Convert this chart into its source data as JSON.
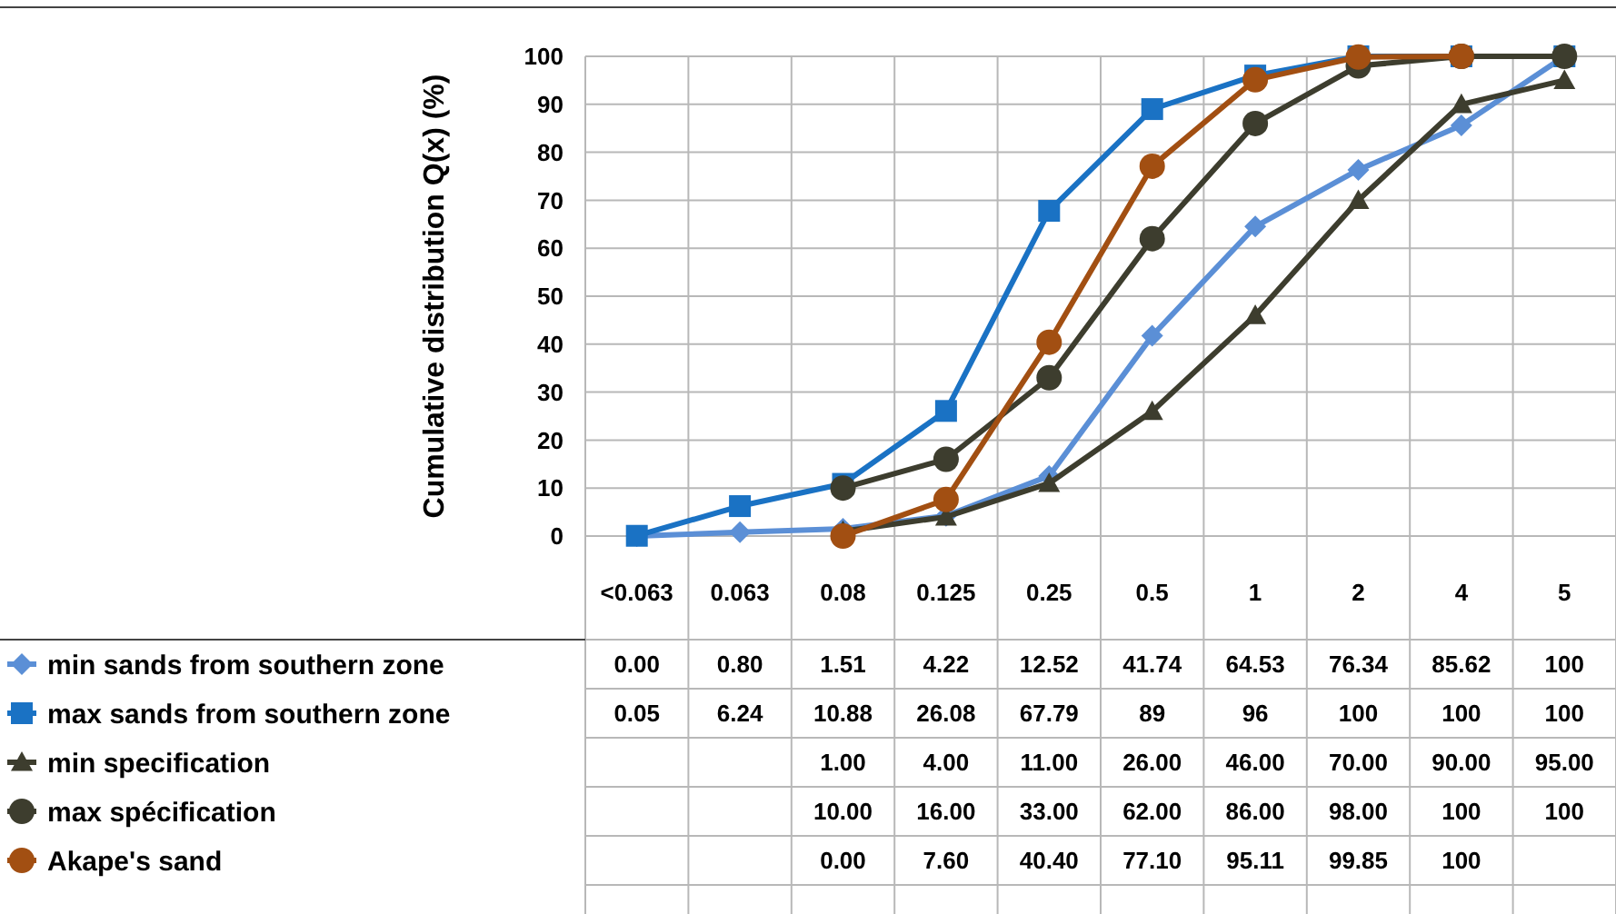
{
  "chart_data": {
    "type": "line",
    "ylabel": "Cumulative distribution Q(x) (%)",
    "categories": [
      "<0.063",
      "0.063",
      "0.08",
      "0.125",
      "0.25",
      "0.5",
      "1",
      "2",
      "4",
      "5"
    ],
    "ylim": [
      0,
      100
    ],
    "yticks": [
      0,
      10,
      20,
      30,
      40,
      50,
      60,
      70,
      80,
      90,
      100
    ],
    "grid": true,
    "legend": "bottom left",
    "series": [
      {
        "name": "min sands from southern zone",
        "color": "#5b8fd6",
        "marker": "diamond",
        "values": [
          0.0,
          0.8,
          1.51,
          4.22,
          12.52,
          41.74,
          64.53,
          76.34,
          85.62,
          100
        ],
        "value_labels": [
          "0.00",
          "0.80",
          "1.51",
          "4.22",
          "12.52",
          "41.74",
          "64.53",
          "76.34",
          "85.62",
          "100"
        ]
      },
      {
        "name": "max sands from southern zone",
        "color": "#1a72c4",
        "marker": "square",
        "values": [
          0.05,
          6.24,
          10.88,
          26.08,
          67.79,
          89,
          96,
          100,
          100,
          100
        ],
        "value_labels": [
          "0.05",
          "6.24",
          "10.88",
          "26.08",
          "67.79",
          "89",
          "96",
          "100",
          "100",
          "100"
        ]
      },
      {
        "name": "min specification",
        "color": "#3d3d2e",
        "marker": "triangle",
        "values": [
          null,
          null,
          1.0,
          4.0,
          11.0,
          26.0,
          46.0,
          70.0,
          90.0,
          95.0
        ],
        "value_labels": [
          null,
          null,
          "1.00",
          "4.00",
          "11.00",
          "26.00",
          "46.00",
          "70.00",
          "90.00",
          "95.00"
        ]
      },
      {
        "name": "max spécification",
        "color": "#3d3d2e",
        "marker": "circle",
        "values": [
          null,
          null,
          10.0,
          16.0,
          33.0,
          62.0,
          86.0,
          98.0,
          100,
          100
        ],
        "value_labels": [
          null,
          null,
          "10.00",
          "16.00",
          "33.00",
          "62.00",
          "86.00",
          "98.00",
          "100",
          "100"
        ]
      },
      {
        "name": "Akape's sand",
        "color": "#a24f12",
        "marker": "circle",
        "values": [
          null,
          null,
          0.0,
          7.6,
          40.4,
          77.1,
          95.11,
          99.85,
          100,
          null
        ],
        "value_labels": [
          null,
          null,
          "0.00",
          "7.60",
          "40.40",
          "77.10",
          "95.11",
          "99.85",
          "100",
          null
        ]
      }
    ]
  }
}
